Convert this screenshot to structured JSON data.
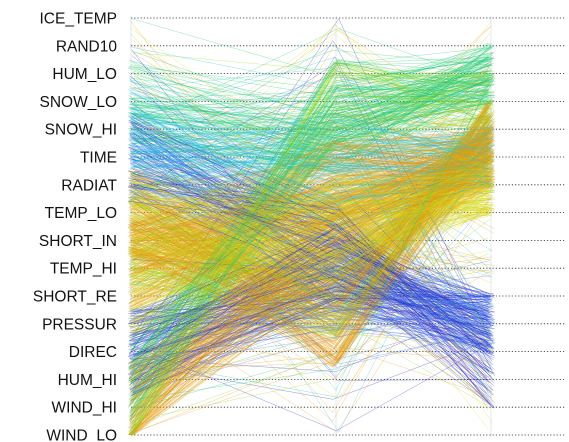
{
  "chart_data": {
    "type": "parallel_coordinates",
    "orientation": "horizontal-rows",
    "variables": [
      "ICE_TEMP",
      "RAND10",
      "HUM_LO",
      "SNOW_LO",
      "SNOW_HI",
      "TIME",
      "RADIAT",
      "TEMP_LO",
      "SHORT_IN",
      "TEMP_HI",
      "SHORT_RE",
      "PRESSUR",
      "DIREC",
      "HUM_HI",
      "WIND_HI",
      "WIND_LO"
    ],
    "columns": 3,
    "color_scale": [
      "#1a1ac8",
      "#2f6df0",
      "#1fc0e0",
      "#18c870",
      "#8fd41c",
      "#d8d81a",
      "#e89a10"
    ],
    "series_bands": [
      {
        "color": "#e89a10",
        "positions": [
          "TEMP_LO",
          "PRESSUR",
          "SNOW_HI"
        ]
      },
      {
        "color": "#d8d81a",
        "positions": [
          "SHORT_RE",
          "TEMP_LO",
          "RADIAT"
        ]
      },
      {
        "color": "#8fd41c",
        "positions": [
          "SHORT_IN",
          "SHORT_RE",
          "SNOW_HI"
        ]
      },
      {
        "color": "#18c870",
        "positions": [
          "HUM_HI",
          "SNOW_LO",
          "HUM_LO"
        ]
      },
      {
        "color": "#1fc0e0",
        "positions": [
          "TIME",
          "TIME",
          "TIME"
        ]
      },
      {
        "color": "#1a1ac8",
        "positions": [
          "DIREC",
          "TEMP_HI",
          "PRESSUR"
        ]
      }
    ],
    "grid": "dotted-horizontal",
    "legend": "none"
  }
}
